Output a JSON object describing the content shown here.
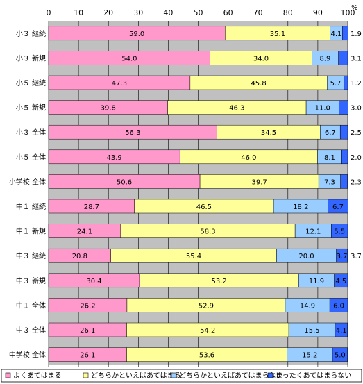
{
  "chart_data": {
    "type": "bar",
    "orientation": "horizontal",
    "stacked": true,
    "percent_symbol": "%",
    "x_ticks": [
      0,
      10,
      20,
      30,
      40,
      50,
      60,
      70,
      80,
      90,
      100
    ],
    "xlim": [
      0,
      100
    ],
    "grid": true,
    "legend_position": "bottom",
    "categories": [
      "小３ 継続",
      "小３ 新規",
      "小５ 継続",
      "小５ 新規",
      "小３ 全体",
      "小５ 全体",
      "小学校 全体",
      "中１ 継続",
      "中１ 新規",
      "中３ 継続",
      "中３ 新規",
      "中１ 全体",
      "中３ 全体",
      "中学校 全体"
    ],
    "series": [
      {
        "name": "よくあてはまる",
        "color": "#ff99cc",
        "values": [
          59.0,
          54.0,
          47.3,
          39.8,
          56.3,
          43.9,
          50.6,
          28.7,
          24.1,
          20.8,
          30.4,
          26.2,
          26.1,
          26.1
        ]
      },
      {
        "name": "どちらかといえばあてはまる",
        "color": "#ffff99",
        "values": [
          35.1,
          34.0,
          45.8,
          46.3,
          34.5,
          46.0,
          39.7,
          46.5,
          58.3,
          55.4,
          53.2,
          52.9,
          54.2,
          53.6
        ]
      },
      {
        "name": "どちらかといえばあてはまらない",
        "color": "#99ccff",
        "values": [
          4.1,
          8.9,
          5.7,
          11.0,
          6.7,
          8.1,
          7.3,
          18.2,
          12.1,
          20.0,
          11.9,
          14.9,
          15.5,
          15.2
        ]
      },
      {
        "name": "まったくあてはまらない",
        "color": "#3366ff",
        "values": [
          1.9,
          3.1,
          1.2,
          3.0,
          2.5,
          2.0,
          2.3,
          6.7,
          5.5,
          3.7,
          4.5,
          6.0,
          4.1,
          5.0
        ]
      }
    ],
    "label_display": {
      "series_labels_outside_last": [
        1.9,
        3.1,
        1.2,
        3.0,
        2.5,
        2.0,
        2.3,
        null,
        null,
        3.7,
        null,
        null,
        null,
        null
      ]
    }
  }
}
